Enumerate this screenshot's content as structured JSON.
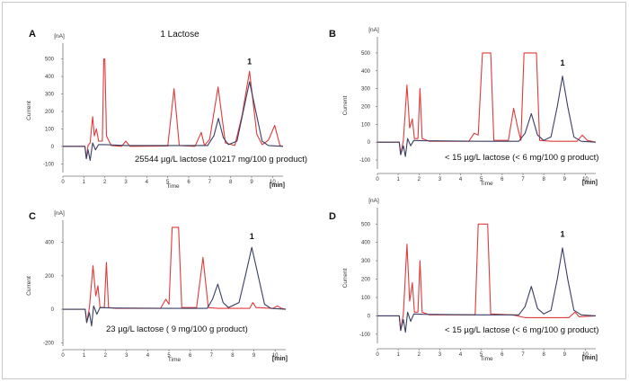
{
  "chart_data": [
    {
      "type": "line",
      "panel_label": "A",
      "title": "1  Lactose",
      "y_unit": "[nA]",
      "x_unit": "[min]",
      "xlabel": "Time",
      "ylabel": "Current",
      "xlim": [
        0,
        10.5
      ],
      "ylim": [
        -150,
        560
      ],
      "x_ticks": [
        0,
        1,
        2,
        3,
        4,
        5,
        6,
        7,
        8,
        9,
        10
      ],
      "y_ticks": [
        -100,
        0,
        100,
        200,
        300,
        400,
        500
      ],
      "annotation": "25544 µg/L  lactose (10217 mg/100 g product)",
      "peak_label": "1",
      "peak_label_x": 8.9,
      "peak_label_y": 470,
      "series": [
        {
          "color": "#e03a3a",
          "points": [
            [
              0,
              0
            ],
            [
              1.05,
              0
            ],
            [
              1.12,
              -70
            ],
            [
              1.2,
              5
            ],
            [
              1.3,
              20
            ],
            [
              1.42,
              170
            ],
            [
              1.5,
              60
            ],
            [
              1.6,
              100
            ],
            [
              1.7,
              30
            ],
            [
              1.88,
              30
            ],
            [
              1.95,
              500
            ],
            [
              2.0,
              500
            ],
            [
              2.08,
              60
            ],
            [
              2.3,
              5
            ],
            [
              2.8,
              0
            ],
            [
              3.0,
              30
            ],
            [
              3.2,
              0
            ],
            [
              5.0,
              2
            ],
            [
              5.3,
              330
            ],
            [
              5.55,
              5
            ],
            [
              6.3,
              0
            ],
            [
              6.6,
              80
            ],
            [
              6.75,
              5
            ],
            [
              7.0,
              40
            ],
            [
              7.4,
              340
            ],
            [
              7.75,
              20
            ],
            [
              8.2,
              5
            ],
            [
              8.55,
              180
            ],
            [
              8.9,
              430
            ],
            [
              9.25,
              70
            ],
            [
              9.5,
              10
            ],
            [
              9.8,
              35
            ],
            [
              10.1,
              120
            ],
            [
              10.35,
              5
            ],
            [
              10.5,
              0
            ]
          ]
        },
        {
          "color": "#3a3f63",
          "points": [
            [
              0,
              0
            ],
            [
              1.05,
              0
            ],
            [
              1.12,
              -70
            ],
            [
              1.2,
              -20
            ],
            [
              1.3,
              -80
            ],
            [
              1.42,
              20
            ],
            [
              1.55,
              -20
            ],
            [
              1.7,
              10
            ],
            [
              2.0,
              10
            ],
            [
              3.0,
              5
            ],
            [
              5.0,
              5
            ],
            [
              6.9,
              5
            ],
            [
              7.2,
              60
            ],
            [
              7.42,
              160
            ],
            [
              7.65,
              50
            ],
            [
              7.9,
              10
            ],
            [
              8.3,
              30
            ],
            [
              8.6,
              200
            ],
            [
              8.9,
              370
            ],
            [
              9.2,
              200
            ],
            [
              9.5,
              30
            ],
            [
              9.8,
              5
            ],
            [
              10.5,
              0
            ]
          ]
        }
      ]
    },
    {
      "type": "line",
      "panel_label": "B",
      "title": "",
      "y_unit": "[nA]",
      "x_unit": "[min]",
      "xlabel": "Time",
      "ylabel": "Current",
      "xlim": [
        0,
        10.5
      ],
      "ylim": [
        -150,
        560
      ],
      "x_ticks": [
        0,
        1,
        2,
        3,
        4,
        5,
        6,
        7,
        8,
        9,
        10
      ],
      "y_ticks": [
        -100,
        0,
        100,
        200,
        300,
        400,
        500
      ],
      "annotation": "< 15 µg/L  lactose (< 6 mg/100 g product)",
      "peak_label": "1",
      "peak_label_x": 8.9,
      "peak_label_y": 430,
      "series": [
        {
          "color": "#e03a3a",
          "points": [
            [
              0,
              0
            ],
            [
              1.05,
              0
            ],
            [
              1.12,
              -70
            ],
            [
              1.25,
              10
            ],
            [
              1.42,
              320
            ],
            [
              1.55,
              80
            ],
            [
              1.68,
              130
            ],
            [
              1.78,
              20
            ],
            [
              1.95,
              20
            ],
            [
              2.05,
              300
            ],
            [
              2.15,
              20
            ],
            [
              2.5,
              5
            ],
            [
              4.4,
              5
            ],
            [
              4.65,
              50
            ],
            [
              4.85,
              40
            ],
            [
              5.05,
              500
            ],
            [
              5.45,
              500
            ],
            [
              5.6,
              10
            ],
            [
              6.3,
              10
            ],
            [
              6.55,
              190
            ],
            [
              6.75,
              80
            ],
            [
              6.9,
              10
            ],
            [
              7.05,
              500
            ],
            [
              7.65,
              500
            ],
            [
              7.8,
              10
            ],
            [
              8.4,
              5
            ],
            [
              9.6,
              5
            ],
            [
              9.85,
              40
            ],
            [
              10.1,
              10
            ],
            [
              10.5,
              0
            ]
          ]
        },
        {
          "color": "#3a3f63",
          "points": [
            [
              0,
              0
            ],
            [
              1.05,
              0
            ],
            [
              1.12,
              -70
            ],
            [
              1.25,
              -20
            ],
            [
              1.35,
              -80
            ],
            [
              1.45,
              20
            ],
            [
              1.6,
              -20
            ],
            [
              1.75,
              10
            ],
            [
              2.2,
              8
            ],
            [
              5.0,
              5
            ],
            [
              6.8,
              5
            ],
            [
              7.1,
              50
            ],
            [
              7.4,
              160
            ],
            [
              7.7,
              40
            ],
            [
              8.0,
              10
            ],
            [
              8.35,
              30
            ],
            [
              8.65,
              200
            ],
            [
              8.9,
              370
            ],
            [
              9.15,
              200
            ],
            [
              9.45,
              30
            ],
            [
              9.8,
              5
            ],
            [
              10.5,
              0
            ]
          ]
        }
      ]
    },
    {
      "type": "line",
      "panel_label": "C",
      "title": "",
      "y_unit": "[nA]",
      "x_unit": "[min]",
      "xlabel": "Time",
      "ylabel": "Current",
      "xlim": [
        0,
        10.5
      ],
      "ylim": [
        -220,
        500
      ],
      "x_ticks": [
        0,
        1,
        2,
        3,
        4,
        5,
        6,
        7,
        8,
        9,
        10
      ],
      "y_ticks": [
        -200,
        0,
        200,
        400
      ],
      "annotation": "23 µg/L  lactose ( 9 mg/100 g product)",
      "peak_label": "1",
      "peak_label_x": 8.9,
      "peak_label_y": 420,
      "series": [
        {
          "color": "#e03a3a",
          "points": [
            [
              0,
              0
            ],
            [
              1.05,
              0
            ],
            [
              1.12,
              -80
            ],
            [
              1.25,
              10
            ],
            [
              1.42,
              260
            ],
            [
              1.55,
              80
            ],
            [
              1.65,
              140
            ],
            [
              1.75,
              10
            ],
            [
              1.95,
              10
            ],
            [
              2.05,
              280
            ],
            [
              2.15,
              10
            ],
            [
              2.5,
              5
            ],
            [
              4.6,
              5
            ],
            [
              4.85,
              60
            ],
            [
              5.0,
              30
            ],
            [
              5.15,
              490
            ],
            [
              5.45,
              490
            ],
            [
              5.6,
              10
            ],
            [
              6.3,
              10
            ],
            [
              6.6,
              310
            ],
            [
              6.85,
              10
            ],
            [
              7.3,
              5
            ],
            [
              8.8,
              5
            ],
            [
              8.95,
              40
            ],
            [
              9.1,
              10
            ],
            [
              9.9,
              5
            ],
            [
              10.1,
              20
            ],
            [
              10.3,
              5
            ],
            [
              10.5,
              0
            ]
          ]
        },
        {
          "color": "#3a3f63",
          "points": [
            [
              0,
              0
            ],
            [
              1.05,
              0
            ],
            [
              1.12,
              -80
            ],
            [
              1.25,
              -20
            ],
            [
              1.35,
              -100
            ],
            [
              1.45,
              20
            ],
            [
              1.6,
              -30
            ],
            [
              1.75,
              10
            ],
            [
              2.2,
              8
            ],
            [
              5.0,
              5
            ],
            [
              6.8,
              5
            ],
            [
              7.05,
              60
            ],
            [
              7.3,
              150
            ],
            [
              7.55,
              40
            ],
            [
              7.8,
              10
            ],
            [
              8.3,
              40
            ],
            [
              8.6,
              200
            ],
            [
              8.9,
              370
            ],
            [
              9.2,
              200
            ],
            [
              9.5,
              30
            ],
            [
              9.8,
              5
            ],
            [
              10.5,
              0
            ]
          ]
        }
      ]
    },
    {
      "type": "line",
      "panel_label": "D",
      "title": "",
      "y_unit": "[nA]",
      "x_unit": "[min]",
      "xlabel": "Time",
      "ylabel": "Current",
      "xlim": [
        0,
        10.5
      ],
      "ylim": [
        -150,
        560
      ],
      "x_ticks": [
        0,
        1,
        2,
        3,
        4,
        5,
        6,
        7,
        8,
        9,
        10
      ],
      "y_ticks": [
        -100,
        0,
        100,
        200,
        300,
        400,
        500
      ],
      "annotation": "< 15 µg/L  lactose (< 6 mg/100 g product)",
      "peak_label": "1",
      "peak_label_x": 8.9,
      "peak_label_y": 430,
      "series": [
        {
          "color": "#e03a3a",
          "points": [
            [
              0,
              0
            ],
            [
              1.05,
              0
            ],
            [
              1.12,
              -80
            ],
            [
              1.25,
              10
            ],
            [
              1.42,
              390
            ],
            [
              1.55,
              80
            ],
            [
              1.68,
              180
            ],
            [
              1.78,
              20
            ],
            [
              1.95,
              20
            ],
            [
              2.05,
              300
            ],
            [
              2.15,
              20
            ],
            [
              2.5,
              5
            ],
            [
              4.7,
              5
            ],
            [
              4.85,
              500
            ],
            [
              5.3,
              500
            ],
            [
              5.45,
              10
            ],
            [
              6.5,
              5
            ],
            [
              7.1,
              -10
            ],
            [
              8.0,
              -10
            ],
            [
              9.2,
              -10
            ],
            [
              9.5,
              20
            ],
            [
              9.7,
              -5
            ],
            [
              10.5,
              0
            ]
          ]
        },
        {
          "color": "#3a3f63",
          "points": [
            [
              0,
              0
            ],
            [
              1.05,
              0
            ],
            [
              1.12,
              -80
            ],
            [
              1.25,
              -20
            ],
            [
              1.35,
              -90
            ],
            [
              1.45,
              20
            ],
            [
              1.6,
              -30
            ],
            [
              1.75,
              10
            ],
            [
              2.2,
              8
            ],
            [
              5.0,
              5
            ],
            [
              6.8,
              5
            ],
            [
              7.1,
              50
            ],
            [
              7.4,
              160
            ],
            [
              7.7,
              40
            ],
            [
              8.0,
              10
            ],
            [
              8.35,
              30
            ],
            [
              8.65,
              200
            ],
            [
              8.9,
              370
            ],
            [
              9.15,
              200
            ],
            [
              9.45,
              30
            ],
            [
              9.8,
              5
            ],
            [
              10.5,
              0
            ]
          ]
        }
      ]
    }
  ]
}
